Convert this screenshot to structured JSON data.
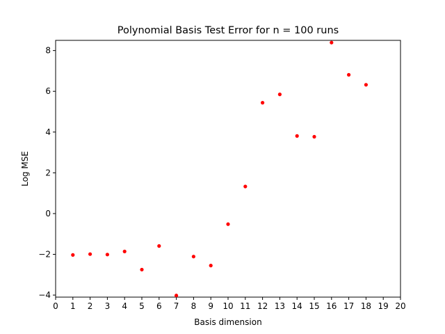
{
  "chart_data": {
    "type": "scatter",
    "title": "Polynomial Basis Test Error for n = 100 runs",
    "xlabel": "Basis dimension",
    "ylabel": "Log MSE",
    "xlim": [
      0,
      20
    ],
    "ylim": [
      -4.1,
      8.5
    ],
    "xticks": [
      0,
      1,
      2,
      3,
      4,
      5,
      6,
      7,
      8,
      9,
      10,
      11,
      12,
      13,
      14,
      15,
      16,
      17,
      18,
      19,
      20
    ],
    "yticks": [
      -4,
      -2,
      0,
      2,
      4,
      6,
      8
    ],
    "grid": false,
    "marker_color": "#ff0000",
    "series": [
      {
        "x": [
          1,
          2,
          3,
          4,
          5,
          6,
          7,
          8,
          9,
          10,
          11,
          12,
          13,
          14,
          15,
          16,
          17,
          18
        ],
        "y": [
          -2.03,
          -1.99,
          -2.01,
          -1.86,
          -2.75,
          -1.59,
          -4.02,
          -2.11,
          -2.55,
          -0.52,
          1.33,
          5.44,
          5.85,
          3.81,
          3.77,
          8.39,
          6.81,
          6.32
        ]
      }
    ]
  }
}
